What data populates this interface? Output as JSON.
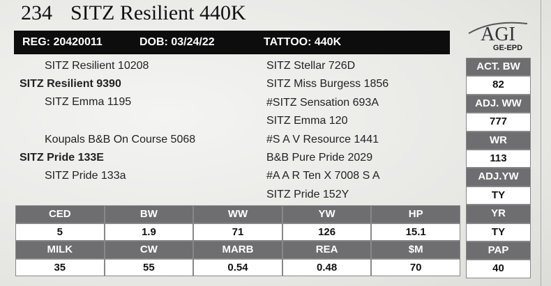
{
  "lot": {
    "number": "234",
    "name": "SITZ Resilient 440K"
  },
  "registration": {
    "reg": "REG: 20420011",
    "dob": "DOB: 03/24/22",
    "tattoo": "TATTOO: 440K"
  },
  "logo": {
    "brand": "AGI",
    "sub": "GE-EPD"
  },
  "pedigree": {
    "sire": {
      "name": "SITZ Resilient 9390",
      "sire": "SITZ Resilient 10208",
      "dam": "SITZ Emma 1195"
    },
    "dam": {
      "name": "SITZ Pride 133E",
      "sire": "Koupals B&B On Course 5068",
      "dam": "SITZ Pride 133a"
    },
    "third": [
      "SITZ Stellar 726D",
      "SITZ Miss Burgess 1856",
      "#SITZ Sensation 693A",
      "SITZ Emma 120",
      "#S A V Resource 1441",
      "B&B Pure Pride 2029",
      "#A A R Ten X 7008 S A",
      "SITZ Pride 152Y"
    ]
  },
  "performance": [
    {
      "label": "ACT. BW",
      "value": 82
    },
    {
      "label": "ADJ. WW",
      "value": 777
    },
    {
      "label": "WR",
      "value": 113
    },
    {
      "label": "ADJ.YW",
      "value": "TY"
    },
    {
      "label": "YR",
      "value": "TY"
    },
    {
      "label": "PAP",
      "value": 40
    }
  ],
  "epd": {
    "rows": [
      {
        "headers": [
          "CED",
          "BW",
          "WW",
          "YW",
          "HP"
        ],
        "values": [
          5,
          1.9,
          71,
          126,
          15.1
        ]
      },
      {
        "headers": [
          "MILK",
          "CW",
          "MARB",
          "REA",
          "$M"
        ],
        "values": [
          35,
          55,
          0.54,
          0.48,
          70
        ]
      }
    ]
  }
}
